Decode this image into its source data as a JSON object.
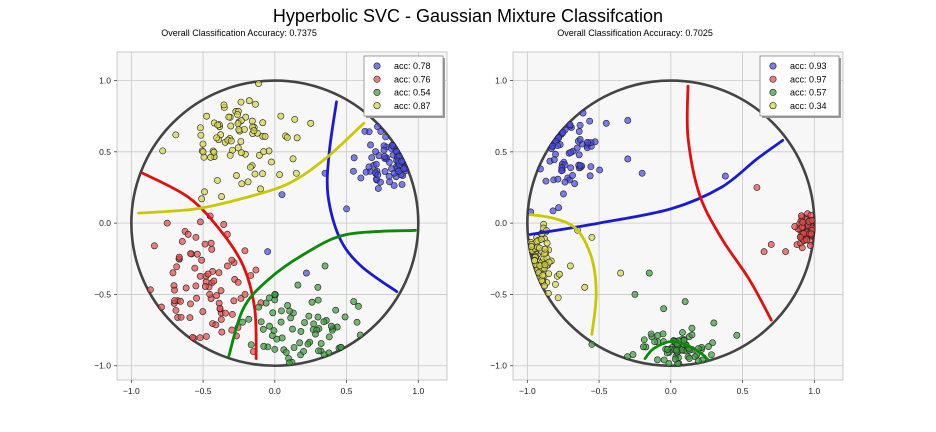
{
  "suptitle": "Hyperbolic SVC - Gaussian Mixture Classifcation",
  "colors": {
    "class0": "#4a4ae6",
    "class1": "#e64a4a",
    "class2": "#3f9a3f",
    "class3": "#d4d44a",
    "geodesic0": "#1a1ad6",
    "geodesic1": "#e01010",
    "geodesic2": "#0a8a0a",
    "geodesic3": "#c8c800",
    "disk": "#444444",
    "axes_bg": "#f7f7f7",
    "grid": "#c8c8c8"
  },
  "chart_data": [
    {
      "type": "scatter",
      "title": "Overall Classification Accuracy: 0.7375",
      "xlim": [
        -1.1,
        1.2
      ],
      "ylim": [
        -1.1,
        1.2
      ],
      "xticks": [
        -1.0,
        -0.5,
        0.0,
        0.5,
        1.0
      ],
      "yticks": [
        -1.0,
        -0.5,
        0.0,
        0.5,
        1.0
      ],
      "xtick_labels": [
        "−1.0",
        "−0.5",
        "0.0",
        "0.5",
        "1.0"
      ],
      "ytick_labels": [
        "−1.0",
        "−0.5",
        "0.0",
        "0.5",
        "1.0"
      ],
      "grid": true,
      "legend_position": "top-right",
      "series": [
        {
          "name": "acc: 0.78",
          "center": [
            0.8,
            0.45
          ],
          "spread": [
            0.1,
            0.12
          ],
          "n": 70,
          "seed": 11,
          "extra": [
            [
              -0.05,
              -0.2
            ],
            [
              0.35,
              0.35
            ],
            [
              0.5,
              0.1
            ],
            [
              0.22,
              -0.35
            ],
            [
              0.05,
              0.2
            ]
          ]
        },
        {
          "name": "acc: 0.76",
          "center": [
            -0.5,
            -0.45
          ],
          "spread": [
            0.16,
            0.2
          ],
          "n": 80,
          "seed": 23,
          "extra": [
            [
              -0.75,
              0.0
            ],
            [
              -0.55,
              -0.1
            ],
            [
              -0.3,
              -0.75
            ],
            [
              -0.15,
              -0.9
            ]
          ]
        },
        {
          "name": "acc: 0.54",
          "center": [
            0.2,
            -0.75
          ],
          "spread": [
            0.18,
            0.13
          ],
          "n": 70,
          "seed": 37,
          "extra": [
            [
              0.0,
              -0.5
            ],
            [
              0.3,
              -0.45
            ],
            [
              0.55,
              -0.55
            ],
            [
              0.35,
              -0.3
            ]
          ]
        },
        {
          "name": "acc: 0.87",
          "center": [
            -0.25,
            0.6
          ],
          "spread": [
            0.2,
            0.18
          ],
          "n": 80,
          "seed": 53,
          "extra": [
            [
              -0.4,
              0.3
            ],
            [
              0.25,
              0.7
            ],
            [
              -0.5,
              0.5
            ],
            [
              0.15,
              0.35
            ]
          ]
        }
      ],
      "geodesics": [
        {
          "cls": 0,
          "points": [
            [
              0.43,
              0.85
            ],
            [
              0.38,
              0.5
            ],
            [
              0.37,
              0.2
            ],
            [
              0.45,
              -0.1
            ],
            [
              0.6,
              -0.3
            ],
            [
              0.85,
              -0.48
            ]
          ]
        },
        {
          "cls": 1,
          "points": [
            [
              -0.92,
              0.35
            ],
            [
              -0.6,
              0.18
            ],
            [
              -0.38,
              -0.05
            ],
            [
              -0.22,
              -0.3
            ],
            [
              -0.14,
              -0.6
            ],
            [
              -0.13,
              -0.95
            ]
          ]
        },
        {
          "cls": 2,
          "points": [
            [
              -0.32,
              -0.93
            ],
            [
              -0.22,
              -0.6
            ],
            [
              -0.05,
              -0.4
            ],
            [
              0.2,
              -0.22
            ],
            [
              0.5,
              -0.08
            ],
            [
              0.98,
              -0.05
            ]
          ]
        },
        {
          "cls": 3,
          "points": [
            [
              -0.95,
              0.07
            ],
            [
              -0.55,
              0.1
            ],
            [
              -0.2,
              0.18
            ],
            [
              0.1,
              0.28
            ],
            [
              0.35,
              0.45
            ],
            [
              0.62,
              0.7
            ]
          ]
        }
      ]
    },
    {
      "type": "scatter",
      "title": "Overall Classification Accuracy: 0.7025",
      "xlim": [
        -1.1,
        1.2
      ],
      "ylim": [
        -1.1,
        1.2
      ],
      "xticks": [
        -1.0,
        -0.5,
        0.0,
        0.5,
        1.0
      ],
      "yticks": [
        -1.0,
        -0.5,
        0.0,
        0.5,
        1.0
      ],
      "xtick_labels": [
        "−1.0",
        "−0.5",
        "0.0",
        "0.5",
        "1.0"
      ],
      "ytick_labels": [
        "−1.0",
        "−0.5",
        "0.0",
        "0.5",
        "1.0"
      ],
      "grid": true,
      "legend_position": "top-right",
      "series": [
        {
          "name": "acc: 0.93",
          "center": [
            -0.72,
            0.45
          ],
          "spread": [
            0.12,
            0.18
          ],
          "n": 70,
          "seed": 71,
          "extra": [
            [
              -0.3,
              0.45
            ],
            [
              -0.2,
              0.35
            ],
            [
              -0.45,
              0.7
            ],
            [
              -0.3,
              0.72
            ],
            [
              0.38,
              0.33
            ]
          ]
        },
        {
          "name": "acc: 0.97",
          "center": [
            0.95,
            -0.05
          ],
          "spread": [
            0.04,
            0.06
          ],
          "n": 60,
          "seed": 89,
          "extra": [
            [
              0.65,
              -0.2
            ],
            [
              0.7,
              -0.15
            ],
            [
              0.6,
              0.25
            ],
            [
              0.8,
              -0.2
            ]
          ]
        },
        {
          "name": "acc: 0.57",
          "center": [
            0.0,
            -0.88
          ],
          "spread": [
            0.15,
            0.07
          ],
          "n": 70,
          "seed": 97,
          "extra": [
            [
              -0.25,
              -0.5
            ],
            [
              -0.15,
              -0.35
            ],
            [
              0.1,
              -0.55
            ],
            [
              -0.55,
              -0.85
            ],
            [
              0.3,
              -0.7
            ],
            [
              -0.05,
              -0.6
            ]
          ]
        },
        {
          "name": "acc: 0.34",
          "center": [
            -0.9,
            -0.25
          ],
          "spread": [
            0.05,
            0.12
          ],
          "n": 70,
          "seed": 109,
          "extra": [
            [
              -0.7,
              -0.3
            ],
            [
              -0.6,
              -0.45
            ],
            [
              -0.55,
              -0.1
            ],
            [
              -0.35,
              -0.35
            ],
            [
              -0.65,
              -0.05
            ]
          ]
        }
      ],
      "geodesics": [
        {
          "cls": 0,
          "points": [
            [
              -0.98,
              -0.08
            ],
            [
              -0.5,
              0.0
            ],
            [
              0.0,
              0.1
            ],
            [
              0.35,
              0.25
            ],
            [
              0.6,
              0.45
            ],
            [
              0.78,
              0.58
            ]
          ]
        },
        {
          "cls": 1,
          "points": [
            [
              0.12,
              0.96
            ],
            [
              0.12,
              0.6
            ],
            [
              0.2,
              0.2
            ],
            [
              0.35,
              -0.1
            ],
            [
              0.55,
              -0.4
            ],
            [
              0.7,
              -0.68
            ]
          ]
        },
        {
          "cls": 2,
          "points": [
            [
              -0.18,
              -0.95
            ],
            [
              -0.12,
              -0.88
            ],
            [
              0.0,
              -0.83
            ],
            [
              0.12,
              -0.86
            ],
            [
              0.22,
              -0.92
            ],
            [
              0.26,
              -0.96
            ]
          ]
        },
        {
          "cls": 3,
          "points": [
            [
              -0.98,
              0.06
            ],
            [
              -0.8,
              0.03
            ],
            [
              -0.65,
              -0.05
            ],
            [
              -0.55,
              -0.25
            ],
            [
              -0.52,
              -0.5
            ],
            [
              -0.55,
              -0.78
            ]
          ]
        }
      ]
    }
  ]
}
